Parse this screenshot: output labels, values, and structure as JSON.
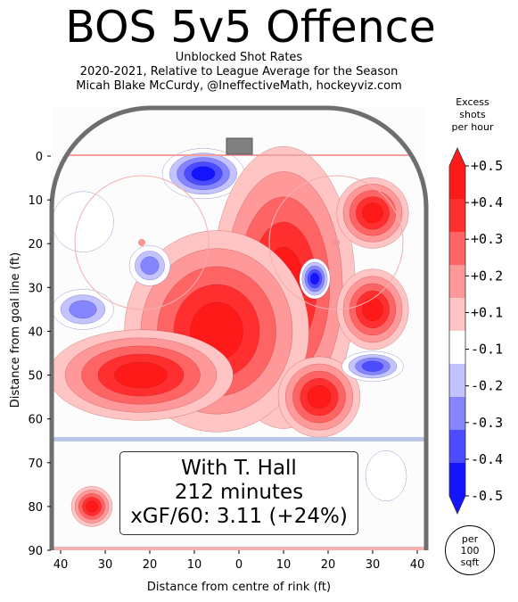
{
  "chart_data": {
    "type": "heatmap",
    "title": "BOS 5v5 Offence",
    "subtitle_lines": [
      "Unblocked Shot Rates",
      "2020-2021, Relative to League Average for the Season",
      "Micah Blake McCurdy, @IneffectiveMath, hockeyviz.com"
    ],
    "xlabel": "Distance from centre of rink (ft)",
    "ylabel": "Distance from goal line (ft)",
    "xlim": [
      -42,
      42
    ],
    "ylim": [
      90,
      -11
    ],
    "x_ticks": [
      -40,
      -30,
      -20,
      -10,
      0,
      10,
      20,
      30,
      40
    ],
    "x_tick_labels": [
      "40",
      "30",
      "20",
      "10",
      "0",
      "10",
      "20",
      "30",
      "40"
    ],
    "y_ticks": [
      0,
      10,
      20,
      30,
      40,
      50,
      60,
      70,
      80,
      90
    ],
    "y_tick_labels": [
      "0",
      "10",
      "20",
      "30",
      "40",
      "50",
      "60",
      "70",
      "80",
      "90"
    ],
    "colorbar": {
      "title_lines": [
        "Excess",
        "shots",
        "per hour"
      ],
      "levels": [
        -0.5,
        -0.4,
        -0.3,
        -0.2,
        -0.1,
        0.1,
        0.2,
        0.3,
        0.4,
        0.5
      ],
      "tick_labels": [
        "+0.5",
        "+0.4",
        "+0.3",
        "+0.2",
        "+0.1",
        "-0.1",
        "-0.2",
        "-0.3",
        "-0.4",
        "-0.5"
      ],
      "colors": [
        "#1414ff",
        "#4b4bff",
        "#8585ff",
        "#c3c3ff",
        "#ffffff",
        "#ffc4c4",
        "#ff9898",
        "#ff6464",
        "#ff2f2f",
        "#ff1a1a"
      ]
    },
    "unit_label_lines": [
      "per",
      "100",
      "sqft"
    ],
    "annotation_lines": [
      "With T. Hall",
      "212 minutes",
      "xGF/60: 3.11 (+24%)"
    ],
    "hotspots": [
      {
        "x": -8,
        "y": 4,
        "value": -0.5,
        "rx": 8,
        "ry": 5
      },
      {
        "x": 10,
        "y": 30,
        "value": 0.5,
        "rx": 14,
        "ry": 28
      },
      {
        "x": -5,
        "y": 40,
        "value": 0.5,
        "rx": 18,
        "ry": 20
      },
      {
        "x": -22,
        "y": 50,
        "value": 0.5,
        "rx": 18,
        "ry": 9
      },
      {
        "x": 30,
        "y": 13,
        "value": 0.5,
        "rx": 7,
        "ry": 7
      },
      {
        "x": 30,
        "y": 35,
        "value": 0.5,
        "rx": 7,
        "ry": 8
      },
      {
        "x": 18,
        "y": 55,
        "value": 0.5,
        "rx": 8,
        "ry": 8
      },
      {
        "x": 17,
        "y": 28,
        "value": -0.5,
        "rx": 3,
        "ry": 4
      },
      {
        "x": 30,
        "y": 48,
        "value": -0.4,
        "rx": 6,
        "ry": 3
      },
      {
        "x": -35,
        "y": 35,
        "value": -0.3,
        "rx": 6,
        "ry": 4
      },
      {
        "x": -20,
        "y": 25,
        "value": -0.3,
        "rx": 4,
        "ry": 4
      },
      {
        "x": -35,
        "y": 15,
        "value": -0.1,
        "rx": 6,
        "ry": 6
      },
      {
        "x": -33,
        "y": 80,
        "value": 0.5,
        "rx": 4,
        "ry": 4
      },
      {
        "x": 33,
        "y": 73,
        "value": -0.1,
        "rx": 4,
        "ry": 5
      }
    ]
  }
}
